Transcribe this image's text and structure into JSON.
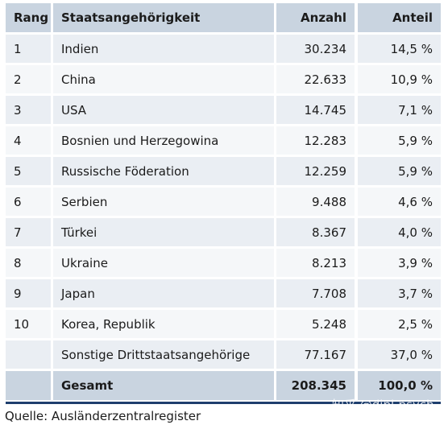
{
  "table": {
    "header": [
      "Rang",
      "Staatsangehörigkeit",
      "Anzahl",
      "Anteil"
    ],
    "rows": [
      {
        "rank": "1",
        "name": "Indien",
        "count": "30.234",
        "share": "14,5 %"
      },
      {
        "rank": "2",
        "name": "China",
        "count": "22.633",
        "share": "10,9 %"
      },
      {
        "rank": "3",
        "name": "USA",
        "count": "14.745",
        "share": "7,1 %"
      },
      {
        "rank": "4",
        "name": "Bosnien und Herzegowina",
        "count": "12.283",
        "share": "5,9 %"
      },
      {
        "rank": "5",
        "name": "Russische Föderation",
        "count": "12.259",
        "share": "5,9 %"
      },
      {
        "rank": "6",
        "name": "Serbien",
        "count": "9.488",
        "share": "4,6 %"
      },
      {
        "rank": "7",
        "name": "Türkei",
        "count": "8.367",
        "share": "4,0 %"
      },
      {
        "rank": "8",
        "name": "Ukraine",
        "count": "8.213",
        "share": "3,9 %"
      },
      {
        "rank": "9",
        "name": "Japan",
        "count": "7.708",
        "share": "3,7 %"
      },
      {
        "rank": "10",
        "name": "Korea, Republik",
        "count": "5.248",
        "share": "2,5 %"
      },
      {
        "name": "Sonstige Drittstaatsangehörige",
        "count": "77.167",
        "share": "37,0 %"
      }
    ],
    "total": {
      "name": "Gesamt",
      "count": "208.345",
      "share": "100,0 %"
    }
  },
  "source": "Quelle: Ausländerzentralregister",
  "watermark": "知乎 @dipl-psych"
}
